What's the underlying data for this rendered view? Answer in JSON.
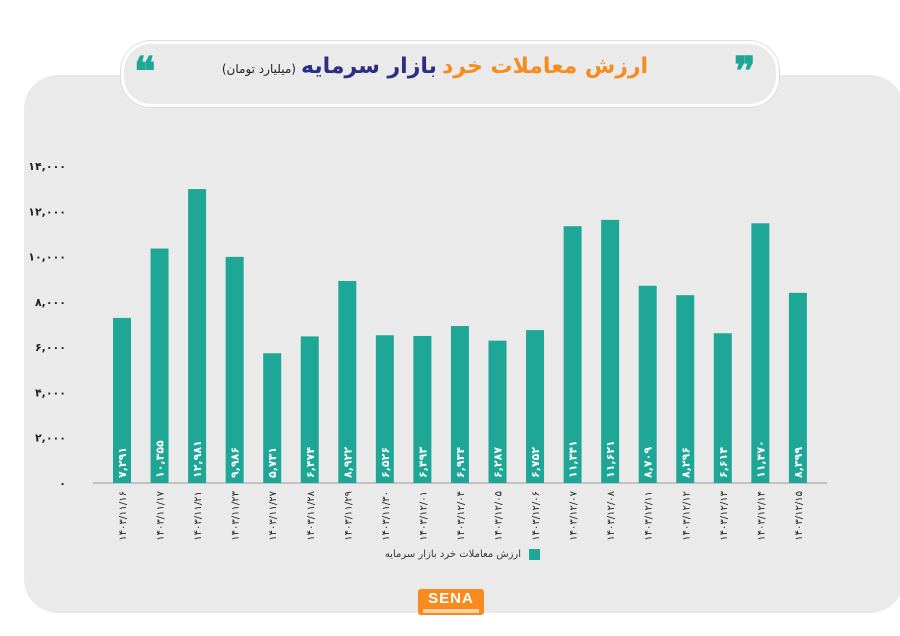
{
  "header": {
    "title_part1": "ارزش معاملات خرد",
    "title_part2": "بازار سرمایه",
    "unit": "(میلیارد تومان)"
  },
  "logo": {
    "text": "SENA"
  },
  "colors": {
    "bar": "#1ea797",
    "accent": "#f78b1f",
    "title_blue": "#2b2f82"
  },
  "chart_data": {
    "type": "bar",
    "title": "ارزش معاملات خرد بازار سرمایه (میلیارد تومان)",
    "categories": [
      "۱۴۰۳/۱۱/۱۶",
      "۱۴۰۳/۱۱/۱۷",
      "۱۴۰۳/۱۱/۲۱",
      "۱۴۰۳/۱۱/۲۳",
      "۱۴۰۳/۱۱/۲۷",
      "۱۴۰۳/۱۱/۲۸",
      "۱۴۰۳/۱۱/۲۹",
      "۱۴۰۳/۱۱/۳۰",
      "۱۴۰۳/۱۲/۰۱",
      "۱۴۰۳/۱۲/۰۴",
      "۱۴۰۳/۱۲/۰۵",
      "۱۴۰۳/۱۲/۰۶",
      "۱۴۰۳/۱۲/۰۷",
      "۱۴۰۳/۱۲/۰۸",
      "۱۴۰۳/۱۲/۱۱",
      "۱۴۰۳/۱۲/۱۲",
      "۱۴۰۳/۱۲/۱۳",
      "۱۴۰۳/۱۲/۱۴",
      "۱۴۰۳/۱۲/۱۵"
    ],
    "series": [
      {
        "name": "ارزش معاملات خرد بازار سرمایه",
        "values": [
          7291,
          10355,
          12981,
          9986,
          5731,
          6474,
          8922,
          6526,
          6493,
          6934,
          6287,
          6752,
          11341,
          11621,
          8709,
          8296,
          6614,
          11470,
          8399
        ]
      }
    ],
    "data_labels": [
      "۷,۲۹۱",
      "۱۰,۳۵۵",
      "۱۲,۹۸۱",
      "۹,۹۸۶",
      "۵,۷۳۱",
      "۶,۴۷۴",
      "۸,۹۲۲",
      "۶,۵۲۶",
      "۶,۴۹۳",
      "۶,۹۳۴",
      "۶,۲۸۷",
      "۶,۷۵۲",
      "۱۱,۳۴۱",
      "۱۱,۶۲۱",
      "۸,۷۰۹",
      "۸,۲۹۶",
      "۶,۶۱۴",
      "۱۱,۴۷۰",
      "۸,۳۹۹"
    ],
    "yticks": [
      0,
      2000,
      4000,
      6000,
      8000,
      10000,
      12000,
      14000
    ],
    "ytick_labels": [
      "۰",
      "۲,۰۰۰",
      "۴,۰۰۰",
      "۶,۰۰۰",
      "۸,۰۰۰",
      "۱۰,۰۰۰",
      "۱۲,۰۰۰",
      "۱۴,۰۰۰"
    ],
    "ylim": [
      0,
      14000
    ],
    "grid": false,
    "legend": "bottom"
  }
}
